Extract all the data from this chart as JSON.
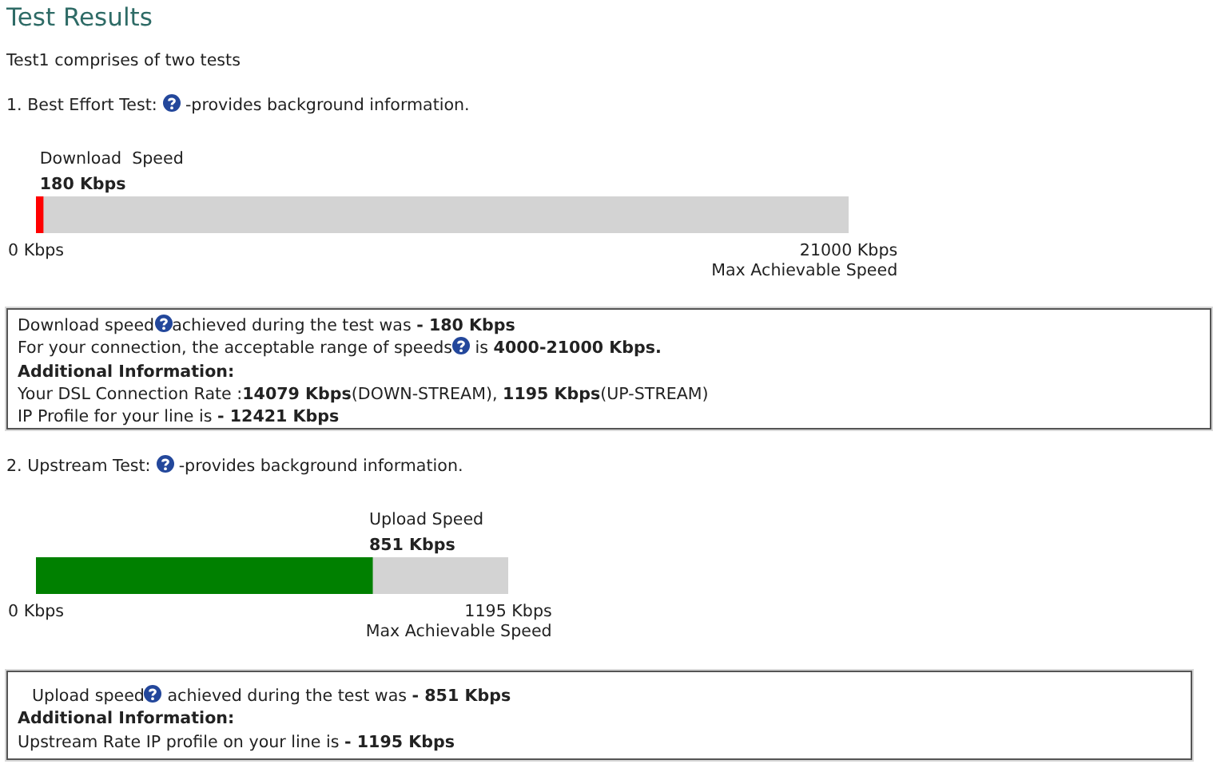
{
  "chart_data": [
    {
      "type": "bar",
      "orientation": "horizontal",
      "title": "Test Results",
      "subtitle": "Test1 comprises of two tests",
      "categories": [
        "Download  Speed"
      ],
      "values": [
        180
      ],
      "color": "#ff0000",
      "value_labels": [
        "180 Kbps"
      ],
      "xlim": [
        0,
        21000
      ],
      "xticks": [
        {
          "value": 0,
          "label": "0 Kbps"
        },
        {
          "value": 21000,
          "label": "21000 Kbps"
        }
      ],
      "bands": [
        {
          "axis": "x",
          "from": 0,
          "to": 21000,
          "color": "#d3d3d3"
        }
      ],
      "annotations": [
        "1. Best Effort Test:",
        "-provides background information.",
        "Max Achievable Speed",
        "Download speed",
        "achieved during the test was",
        "- 180 Kbps",
        "For your connection, the acceptable range of speeds",
        "is",
        "4000-21000 Kbps.",
        "Additional Information:",
        "Your DSL Connection Rate :",
        "14079 Kbps",
        "(DOWN-STREAM),",
        "1195 Kbps",
        "(UP-STREAM)",
        "IP Profile for your line is",
        "- 12421 Kbps"
      ]
    },
    {
      "type": "bar",
      "orientation": "horizontal",
      "categories": [
        "Upload Speed"
      ],
      "values": [
        851
      ],
      "color": "#008000",
      "value_labels": [
        "851 Kbps"
      ],
      "xlim": [
        0,
        1195
      ],
      "xticks": [
        {
          "value": 0,
          "label": "0 Kbps"
        },
        {
          "value": 1195,
          "label": "1195 Kbps"
        }
      ],
      "bands": [
        {
          "axis": "x",
          "from": 0,
          "to": 1195,
          "color": "#d3d3d3"
        }
      ],
      "annotations": [
        "2. Upstream Test:",
        "-provides background information.",
        "Max Achievable Speed",
        "Upload speed",
        "achieved during the test was",
        "- 851 Kbps",
        "Additional Information:",
        "Upstream Rate IP profile on your line is",
        "- 1195 Kbps"
      ]
    }
  ]
}
